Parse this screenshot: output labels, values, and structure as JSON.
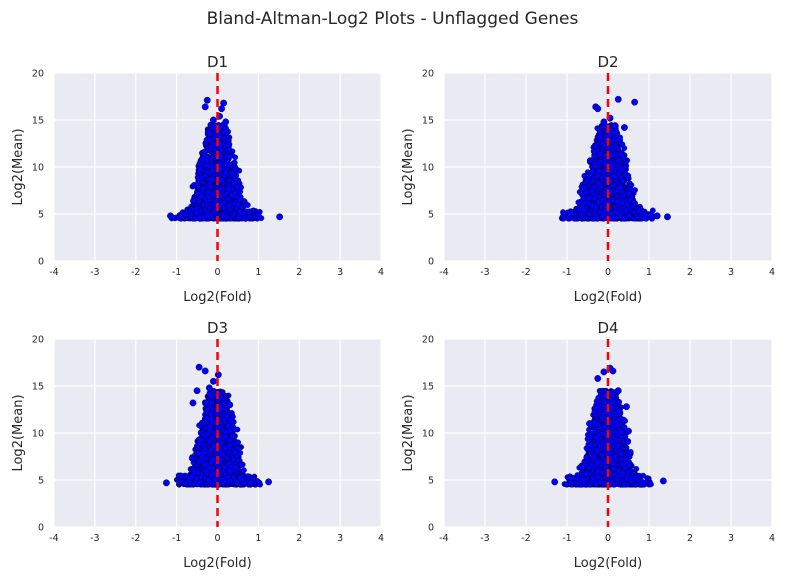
{
  "figure": {
    "title": "Bland-Altman-Log2 Plots - Unflagged Genes"
  },
  "colors": {
    "axes_bg": "#eaeaf2",
    "grid": "#ffffff",
    "points": "#0000ff",
    "point_edge": "#000000",
    "zero_line": "#ff0000"
  },
  "chart_data": [
    {
      "type": "scatter",
      "title": "D1",
      "xlabel": "Log2(Fold)",
      "ylabel": "Log2(Mean)",
      "xlim": [
        -4,
        4
      ],
      "ylim": [
        0,
        20
      ],
      "xticks": [
        -4,
        -3,
        -2,
        -1,
        0,
        1,
        2,
        3,
        4
      ],
      "yticks": [
        0,
        5,
        10,
        15,
        20
      ],
      "grid": true,
      "reference_line": {
        "x": 0,
        "style": "dashed"
      },
      "approx_points": [
        [
          -1.15,
          4.8
        ],
        [
          1.52,
          4.7
        ],
        [
          1.0,
          4.8
        ],
        [
          -0.25,
          17.1
        ],
        [
          0.15,
          16.8
        ],
        [
          -0.3,
          16.4
        ],
        [
          0.1,
          16.2
        ],
        [
          0.05,
          15.4
        ],
        [
          -0.1,
          15.0
        ],
        [
          0.2,
          14.8
        ]
      ]
    },
    {
      "type": "scatter",
      "title": "D2",
      "xlabel": "Log2(Fold)",
      "ylabel": "Log2(Mean)",
      "xlim": [
        -4,
        4
      ],
      "ylim": [
        0,
        20
      ],
      "xticks": [
        -4,
        -3,
        -2,
        -1,
        0,
        1,
        2,
        3,
        4
      ],
      "yticks": [
        0,
        5,
        10,
        15,
        20
      ],
      "grid": true,
      "reference_line": {
        "x": 0,
        "style": "dashed"
      },
      "approx_points": [
        [
          -1.08,
          4.8
        ],
        [
          1.45,
          4.7
        ],
        [
          1.2,
          4.8
        ],
        [
          0.25,
          17.2
        ],
        [
          0.65,
          16.9
        ],
        [
          -0.3,
          16.4
        ],
        [
          -0.25,
          16.2
        ],
        [
          0.05,
          15.2
        ],
        [
          -0.1,
          14.8
        ],
        [
          0.4,
          14.2
        ]
      ]
    },
    {
      "type": "scatter",
      "title": "D3",
      "xlabel": "Log2(Fold)",
      "ylabel": "Log2(Mean)",
      "xlim": [
        -4,
        4
      ],
      "ylim": [
        0,
        20
      ],
      "xticks": [
        -4,
        -3,
        -2,
        -1,
        0,
        1,
        2,
        3,
        4
      ],
      "yticks": [
        0,
        5,
        10,
        15,
        20
      ],
      "grid": true,
      "reference_line": {
        "x": 0,
        "style": "dashed"
      },
      "approx_points": [
        [
          -1.25,
          4.7
        ],
        [
          1.25,
          4.8
        ],
        [
          -0.45,
          17.0
        ],
        [
          -0.3,
          16.6
        ],
        [
          0.02,
          16.2
        ],
        [
          -0.1,
          15.5
        ],
        [
          -0.5,
          14.5
        ],
        [
          -0.6,
          13.2
        ],
        [
          0.3,
          13.0
        ],
        [
          -0.2,
          14.8
        ]
      ]
    },
    {
      "type": "scatter",
      "title": "D4",
      "xlabel": "Log2(Fold)",
      "ylabel": "Log2(Mean)",
      "xlim": [
        -4,
        4
      ],
      "ylim": [
        0,
        20
      ],
      "xticks": [
        -4,
        -3,
        -2,
        -1,
        0,
        1,
        2,
        3,
        4
      ],
      "yticks": [
        0,
        5,
        10,
        15,
        20
      ],
      "grid": true,
      "reference_line": {
        "x": 0,
        "style": "dashed"
      },
      "approx_points": [
        [
          -1.3,
          4.8
        ],
        [
          1.35,
          4.9
        ],
        [
          0.05,
          16.9
        ],
        [
          -0.1,
          16.5
        ],
        [
          0.12,
          16.6
        ],
        [
          -0.25,
          15.8
        ],
        [
          0.25,
          14.5
        ],
        [
          0.45,
          12.8
        ],
        [
          -0.45,
          11.0
        ],
        [
          0.5,
          10.2
        ]
      ]
    }
  ]
}
